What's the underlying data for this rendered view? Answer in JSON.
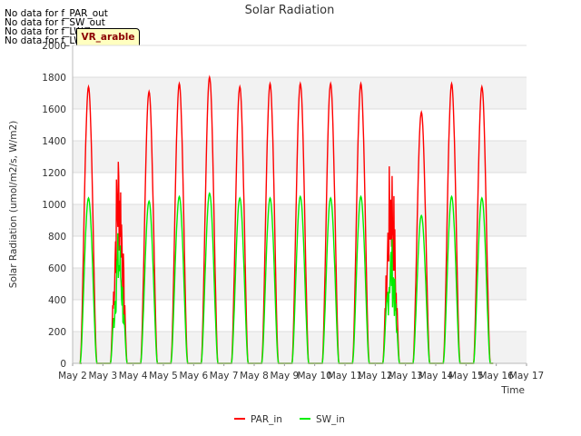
{
  "notices": [
    "No data for f_PAR_out",
    "No data for f_SW_out",
    "No data for f_LW_in",
    "No data for f_LW_out"
  ],
  "badge": "VR_arable",
  "chart_data": {
    "type": "line",
    "title": "Solar Radiation",
    "xlabel": "Time",
    "ylabel": "Solar Radiation (umol/m2/s, W/m2)",
    "xlim": [
      2,
      17
    ],
    "ylim": [
      0,
      2000
    ],
    "x_ticks": [
      "May 2",
      "May 3",
      "May 4",
      "May 5",
      "May 6",
      "May 7",
      "May 8",
      "May 9",
      "May 10",
      "May 11",
      "May 12",
      "May 13",
      "May 14",
      "May 15",
      "May 16",
      "May 17"
    ],
    "y_ticks": [
      0,
      200,
      400,
      600,
      800,
      1000,
      1200,
      1400,
      1600,
      1800,
      2000
    ],
    "grid": true,
    "legend_position": "bottom-center",
    "series": [
      {
        "name": "PAR_in",
        "color": "#ff0000",
        "day_peaks": [
          {
            "day": 2,
            "peak": 1740
          },
          {
            "day": 3,
            "peak": 1450
          },
          {
            "day": 4,
            "peak": 1710
          },
          {
            "day": 5,
            "peak": 1760
          },
          {
            "day": 6,
            "peak": 1800
          },
          {
            "day": 7,
            "peak": 1740
          },
          {
            "day": 8,
            "peak": 1760
          },
          {
            "day": 9,
            "peak": 1760
          },
          {
            "day": 10,
            "peak": 1760
          },
          {
            "day": 11,
            "peak": 1760
          },
          {
            "day": 12,
            "peak": 1380
          },
          {
            "day": 13,
            "peak": 1580
          },
          {
            "day": 14,
            "peak": 1760
          },
          {
            "day": 15,
            "peak": 1740
          }
        ]
      },
      {
        "name": "SW_in",
        "color": "#00ee00",
        "day_peaks": [
          {
            "day": 2,
            "peak": 1040
          },
          {
            "day": 3,
            "peak": 860
          },
          {
            "day": 4,
            "peak": 1020
          },
          {
            "day": 5,
            "peak": 1050
          },
          {
            "day": 6,
            "peak": 1070
          },
          {
            "day": 7,
            "peak": 1040
          },
          {
            "day": 8,
            "peak": 1040
          },
          {
            "day": 9,
            "peak": 1050
          },
          {
            "day": 10,
            "peak": 1040
          },
          {
            "day": 11,
            "peak": 1050
          },
          {
            "day": 12,
            "peak": 820
          },
          {
            "day": 13,
            "peak": 930
          },
          {
            "day": 14,
            "peak": 1050
          },
          {
            "day": 15,
            "peak": 1040
          }
        ]
      }
    ]
  }
}
